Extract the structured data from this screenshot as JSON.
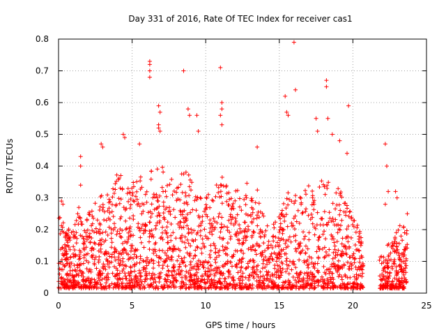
{
  "chart_data": {
    "type": "scatter",
    "title": "Day 331 of 2016, Rate Of TEC Index for receiver cas1",
    "xlabel": "GPS time / hours",
    "ylabel": "ROTI / TECUs",
    "xlim": [
      0,
      25
    ],
    "ylim": [
      0,
      0.8
    ],
    "xticks": [
      "0",
      "5",
      "10",
      "15",
      "20",
      "25"
    ],
    "yticks": [
      "0",
      "0.1",
      "0.2",
      "0.3",
      "0.4",
      "0.5",
      "0.6",
      "0.7",
      "0.8"
    ],
    "grid": true,
    "marker": "plus",
    "color": "#ff0000",
    "series": [
      {
        "name": "ROTI",
        "envelope": {
          "x": [
            0,
            0.5,
            1.0,
            1.5,
            2.0,
            2.5,
            3.0,
            3.5,
            4.0,
            4.5,
            5.0,
            5.5,
            6.0,
            6.5,
            7.0,
            7.5,
            8.0,
            8.5,
            9.0,
            9.5,
            10.0,
            10.5,
            11.0,
            11.5,
            12.0,
            12.5,
            13.0,
            13.5,
            14.0,
            14.5,
            15.0,
            15.5,
            16.0,
            16.5,
            17.0,
            17.5,
            18.0,
            18.5,
            19.0,
            19.5,
            20.0,
            20.5,
            20.7
          ],
          "y": [
            0.25,
            0.22,
            0.2,
            0.3,
            0.25,
            0.3,
            0.32,
            0.33,
            0.38,
            0.36,
            0.34,
            0.4,
            0.38,
            0.4,
            0.4,
            0.37,
            0.36,
            0.39,
            0.38,
            0.3,
            0.32,
            0.33,
            0.38,
            0.33,
            0.33,
            0.35,
            0.35,
            0.33,
            0.24,
            0.22,
            0.25,
            0.35,
            0.34,
            0.33,
            0.35,
            0.33,
            0.38,
            0.36,
            0.33,
            0.3,
            0.24,
            0.2,
            0.15
          ]
        },
        "envelope2": {
          "x": [
            21.8,
            22.2,
            22.6,
            23.0,
            23.3,
            23.7
          ],
          "y": [
            0.12,
            0.15,
            0.16,
            0.2,
            0.22,
            0.2
          ]
        },
        "gaps": [
          [
            20.7,
            21.8
          ]
        ],
        "outliers": [
          [
            0.2,
            0.29
          ],
          [
            0.3,
            0.28
          ],
          [
            1.5,
            0.43
          ],
          [
            1.5,
            0.4
          ],
          [
            1.5,
            0.34
          ],
          [
            2.9,
            0.47
          ],
          [
            3.0,
            0.46
          ],
          [
            4.4,
            0.5
          ],
          [
            4.5,
            0.49
          ],
          [
            5.5,
            0.47
          ],
          [
            6.2,
            0.73
          ],
          [
            6.2,
            0.72
          ],
          [
            6.2,
            0.7
          ],
          [
            6.2,
            0.68
          ],
          [
            6.8,
            0.59
          ],
          [
            6.9,
            0.57
          ],
          [
            6.8,
            0.53
          ],
          [
            6.8,
            0.52
          ],
          [
            6.9,
            0.51
          ],
          [
            8.5,
            0.7
          ],
          [
            8.8,
            0.58
          ],
          [
            8.9,
            0.56
          ],
          [
            9.4,
            0.56
          ],
          [
            9.5,
            0.51
          ],
          [
            11.0,
            0.71
          ],
          [
            11.1,
            0.6
          ],
          [
            11.1,
            0.58
          ],
          [
            11.0,
            0.56
          ],
          [
            11.1,
            0.53
          ],
          [
            13.5,
            0.46
          ],
          [
            15.4,
            0.62
          ],
          [
            15.5,
            0.57
          ],
          [
            15.6,
            0.56
          ],
          [
            16.0,
            0.79
          ],
          [
            16.1,
            0.64
          ],
          [
            17.5,
            0.55
          ],
          [
            17.6,
            0.51
          ],
          [
            18.2,
            0.67
          ],
          [
            18.2,
            0.65
          ],
          [
            18.3,
            0.55
          ],
          [
            18.6,
            0.5
          ],
          [
            19.1,
            0.48
          ],
          [
            19.7,
            0.59
          ],
          [
            19.6,
            0.44
          ],
          [
            22.2,
            0.47
          ],
          [
            22.3,
            0.4
          ],
          [
            22.4,
            0.32
          ],
          [
            22.2,
            0.28
          ],
          [
            22.9,
            0.32
          ],
          [
            23.0,
            0.3
          ],
          [
            23.7,
            0.25
          ]
        ]
      }
    ]
  }
}
